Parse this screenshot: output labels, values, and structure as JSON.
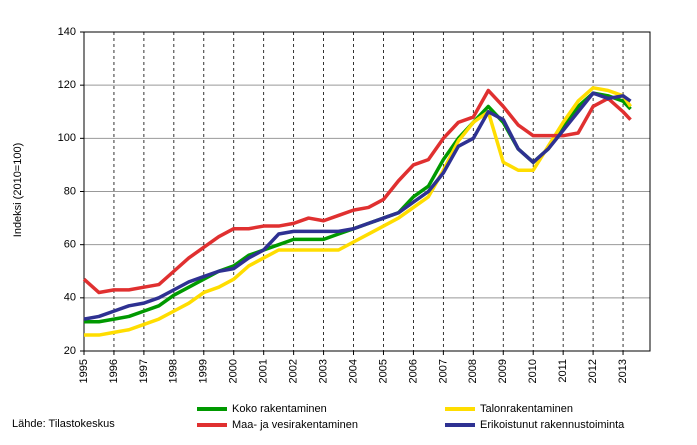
{
  "chart_data": {
    "type": "line",
    "y_label": "Indeksi (2010=100)",
    "source": "Lähde: Tilastokeskus",
    "x": [
      1995,
      1995.5,
      1996,
      1996.5,
      1997,
      1997.5,
      1998,
      1998.5,
      1999,
      1999.5,
      2000,
      2000.5,
      2001,
      2001.5,
      2002,
      2002.5,
      2003,
      2003.5,
      2004,
      2004.5,
      2005,
      2005.5,
      2006,
      2006.5,
      2007,
      2007.5,
      2008,
      2008.5,
      2009,
      2009.5,
      2010,
      2010.5,
      2011,
      2011.5,
      2012,
      2012.5,
      2013,
      2013.25
    ],
    "series": [
      {
        "name": "Koko rakentaminen",
        "color": "#009900",
        "values": [
          31,
          31,
          32,
          33,
          35,
          37,
          41,
          44,
          47,
          50,
          52,
          56,
          58,
          60,
          62,
          62,
          62,
          64,
          66,
          68,
          70,
          72,
          78,
          82,
          92,
          100,
          106,
          112,
          106,
          96,
          91,
          96,
          104,
          112,
          117,
          116,
          114,
          111
        ]
      },
      {
        "name": "Talonrakentaminen",
        "color": "#ffdd00",
        "values": [
          26,
          26,
          27,
          28,
          30,
          32,
          35,
          38,
          42,
          44,
          47,
          52,
          55,
          58,
          58,
          58,
          58,
          58,
          61,
          64,
          67,
          70,
          74,
          78,
          88,
          99,
          106,
          110,
          91,
          88,
          88,
          97,
          106,
          114,
          119,
          118,
          116,
          112
        ]
      },
      {
        "name": "Maa- ja vesirakentaminen",
        "color": "#e03030",
        "values": [
          47,
          42,
          43,
          43,
          44,
          45,
          50,
          55,
          59,
          63,
          66,
          66,
          67,
          67,
          68,
          70,
          69,
          71,
          73,
          74,
          77,
          84,
          90,
          92,
          100,
          106,
          108,
          118,
          112,
          105,
          101,
          101,
          101,
          102,
          112,
          115,
          110,
          107
        ]
      },
      {
        "name": "Erikoistunut rakennustoiminta",
        "color": "#2e3192",
        "values": [
          32,
          33,
          35,
          37,
          38,
          40,
          43,
          46,
          48,
          50,
          51,
          55,
          58,
          64,
          65,
          65,
          65,
          65,
          66,
          68,
          70,
          72,
          76,
          80,
          87,
          97,
          100,
          110,
          107,
          96,
          91,
          96,
          103,
          110,
          117,
          115,
          116,
          114
        ]
      }
    ],
    "xlim": [
      1995,
      2013.9
    ],
    "xticks": [
      1995,
      1996,
      1997,
      1998,
      1999,
      2000,
      2001,
      2002,
      2003,
      2004,
      2005,
      2006,
      2007,
      2008,
      2009,
      2010,
      2011,
      2012,
      2013
    ],
    "ylim": [
      20,
      140
    ],
    "yticks": [
      20,
      40,
      60,
      80,
      100,
      120,
      140
    ],
    "grid": true
  }
}
